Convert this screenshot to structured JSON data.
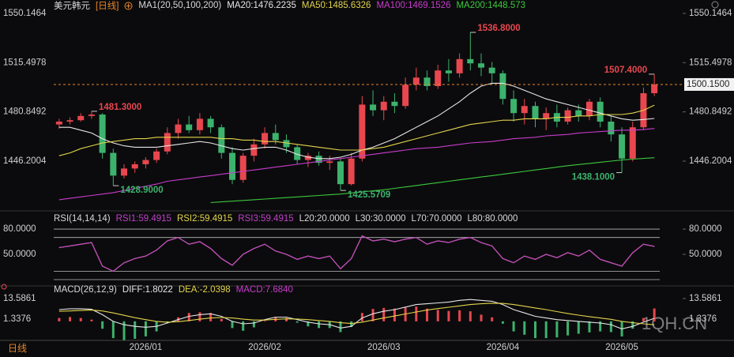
{
  "chart_data": [
    {
      "type": "candlestick",
      "title": "美元韩元",
      "period": "[日线]",
      "legend_title": "MA1(20,50,100,200)",
      "categories": [
        null,
        null,
        null,
        null,
        null,
        null,
        null,
        null,
        "2026/01",
        null,
        null,
        null,
        null,
        null,
        null,
        null,
        null,
        null,
        null,
        "2026/02",
        null,
        null,
        null,
        null,
        null,
        null,
        null,
        null,
        null,
        null,
        "2026/03",
        null,
        null,
        null,
        null,
        null,
        null,
        null,
        null,
        null,
        null,
        "2026/04",
        null,
        null,
        null,
        null,
        null,
        null,
        null,
        null,
        null,
        null,
        "2026/05",
        null,
        null,
        null
      ],
      "open": [
        1472,
        1474,
        1475,
        1478,
        1479,
        1452,
        1436,
        1441,
        1444,
        1447,
        1453,
        1466,
        1472,
        1468,
        1476,
        1470,
        1452,
        1433,
        1450,
        1458,
        1466,
        1461,
        1456,
        1447,
        1450,
        1445,
        1446,
        1430,
        1448,
        1486,
        1482,
        1488,
        1485,
        1500,
        1505,
        1499,
        1510,
        1508,
        1518,
        1515,
        1512,
        1508,
        1490,
        1480,
        1485,
        1476,
        1480,
        1474,
        1482,
        1478,
        1488,
        1474,
        1465,
        1448,
        1470,
        1494
      ],
      "high": [
        1476,
        1477,
        1480,
        1481.3,
        1480,
        1455,
        1444,
        1446,
        1449,
        1455,
        1470,
        1476,
        1478,
        1480,
        1478,
        1472,
        1456,
        1452,
        1462,
        1470,
        1472,
        1465,
        1458,
        1452,
        1453,
        1450,
        1448,
        1452,
        1492,
        1496,
        1492,
        1494,
        1505,
        1512,
        1510,
        1514,
        1518,
        1522,
        1536.8,
        1522,
        1516,
        1510,
        1496,
        1490,
        1488,
        1484,
        1486,
        1484,
        1486,
        1490,
        1491,
        1478,
        1470,
        1474,
        1498,
        1507.4
      ],
      "low": [
        1469,
        1472,
        1474,
        1476,
        1448,
        1428.9,
        1434,
        1438,
        1441,
        1445,
        1451,
        1462,
        1466,
        1465,
        1466,
        1448,
        1430,
        1431,
        1446,
        1455,
        1458,
        1452,
        1444,
        1442,
        1443,
        1440,
        1425.5709,
        1429,
        1446,
        1478,
        1475,
        1480,
        1483,
        1496,
        1496,
        1497,
        1502,
        1505,
        1510,
        1506,
        1500,
        1486,
        1474,
        1472,
        1470,
        1468,
        1470,
        1472,
        1474,
        1475,
        1470,
        1460,
        1438.1,
        1446,
        1468,
        1492
      ],
      "close": [
        1474,
        1475,
        1478,
        1479,
        1452,
        1436,
        1441,
        1444,
        1447,
        1453,
        1466,
        1472,
        1468,
        1476,
        1470,
        1452,
        1433,
        1450,
        1458,
        1466,
        1461,
        1456,
        1447,
        1450,
        1445,
        1446,
        1430,
        1448,
        1486,
        1482,
        1488,
        1485,
        1500,
        1505,
        1499,
        1510,
        1508,
        1518,
        1515,
        1512,
        1508,
        1490,
        1480,
        1485,
        1476,
        1480,
        1474,
        1482,
        1478,
        1488,
        1474,
        1465,
        1448,
        1470,
        1494,
        1500.15
      ],
      "up_color": "#e8474f",
      "down_color": "#3db26d",
      "series": [
        {
          "name": "MA20:1476.2235",
          "color": "#e6e6e6",
          "values": [
            1470,
            1470,
            1468,
            1466,
            1462,
            1459,
            1457,
            1456,
            1456,
            1456,
            1457,
            1458,
            1459,
            1460,
            1459,
            1457,
            1455,
            1454,
            1455,
            1456,
            1456,
            1454,
            1451,
            1449,
            1448,
            1448,
            1449,
            1451,
            1454,
            1456,
            1459,
            1462,
            1466,
            1470,
            1474,
            1478,
            1483,
            1488,
            1494,
            1499,
            1501,
            1501,
            1499,
            1496,
            1493,
            1490,
            1488,
            1486,
            1484,
            1482,
            1480,
            1478,
            1476,
            1475,
            1475.5,
            1476.2235
          ]
        },
        {
          "name": "MA50:1485.6326",
          "color": "#e2d44a",
          "values": [
            1450,
            1452,
            1455,
            1457,
            1459,
            1460,
            1461,
            1462,
            1462,
            1463,
            1463,
            1463,
            1463,
            1463,
            1463,
            1462,
            1462,
            1461,
            1461,
            1460,
            1460,
            1459,
            1458,
            1457,
            1456,
            1455,
            1454,
            1454,
            1454,
            1455,
            1456,
            1458,
            1460,
            1462,
            1464,
            1466,
            1468,
            1470,
            1472,
            1473,
            1474,
            1475,
            1475,
            1476,
            1476,
            1476,
            1477,
            1477,
            1478,
            1478,
            1479,
            1479,
            1479,
            1480,
            1482,
            1485.6326
          ]
        },
        {
          "name": "MA100:1469.1526",
          "color": "#c83ccc",
          "values": [
            1419,
            1420,
            1421,
            1422,
            1423,
            1424,
            1425.5,
            1427,
            1428.5,
            1430,
            1432,
            1433,
            1434,
            1435,
            1436,
            1437,
            1438,
            1439,
            1440,
            1441,
            1442,
            1443,
            1444,
            1445,
            1446,
            1447,
            1448,
            1449,
            1450,
            1451,
            1452,
            1453,
            1454,
            1455,
            1455.5,
            1456,
            1457,
            1458,
            1459,
            1459.5,
            1460,
            1461,
            1462,
            1462.5,
            1463,
            1464,
            1464.5,
            1465,
            1466,
            1466.5,
            1467,
            1467.5,
            1468,
            1468,
            1468.5,
            1469.1526
          ]
        },
        {
          "name": "MA200:1448.573",
          "color": "#3cc83c",
          "values": [
            null,
            null,
            null,
            null,
            null,
            null,
            null,
            null,
            null,
            null,
            null,
            null,
            null,
            null,
            1417,
            1417.5,
            1418,
            1418.5,
            1419,
            1419.5,
            1420,
            1420.5,
            1421,
            1421.5,
            1422,
            1422.5,
            1423,
            1423.8,
            1424.5,
            1425.3,
            1426,
            1427,
            1428,
            1429,
            1430,
            1431,
            1432,
            1433,
            1434,
            1435,
            1436,
            1437,
            1438,
            1439,
            1440,
            1441,
            1442,
            1443,
            1443.8,
            1444.6,
            1445.4,
            1446.2,
            1447,
            1447.6,
            1448.1,
            1448.573
          ]
        }
      ],
      "ylim": [
        1413.96,
        1555.15
      ],
      "yticks": [
        1550.1464,
        1515.4978,
        1480.8492,
        1446.2004
      ],
      "last_price": {
        "value": 1500.15,
        "label": "1500.1500"
      },
      "annotations": [
        {
          "value": 1481.3,
          "label": "1481.3000"
        },
        {
          "value": 1428.9,
          "label": "1428.9000"
        },
        {
          "value": 1425.5709,
          "label": "1425.5709"
        },
        {
          "value": 1536.8,
          "label": "1536.8000"
        },
        {
          "value": 1507.4,
          "label": "1507.4000"
        },
        {
          "value": 1438.1,
          "label": "1438.1000"
        }
      ]
    },
    {
      "type": "line",
      "title": "RSI(14,14,14)",
      "series": [
        {
          "name": "RSI1:59.4915",
          "color": "#c040c8",
          "values": [
            58,
            60,
            62,
            64,
            36,
            30,
            40,
            45,
            48,
            55,
            66,
            70,
            62,
            65,
            57,
            45,
            37,
            50,
            57,
            62,
            54,
            50,
            44,
            48,
            45,
            48,
            33,
            45,
            72,
            66,
            68,
            65,
            68,
            70,
            62,
            66,
            64,
            68,
            70,
            64,
            60,
            45,
            40,
            48,
            44,
            50,
            46,
            52,
            48,
            55,
            44,
            40,
            36,
            52,
            62,
            59.4915
          ]
        },
        {
          "name": "RSI2:59.4915",
          "color": "#e2d44a",
          "values": [
            58,
            60,
            62,
            64,
            36,
            30,
            40,
            45,
            48,
            55,
            66,
            70,
            62,
            65,
            57,
            45,
            37,
            50,
            57,
            62,
            54,
            50,
            44,
            48,
            45,
            48,
            33,
            45,
            72,
            66,
            68,
            65,
            68,
            70,
            62,
            66,
            64,
            68,
            70,
            64,
            60,
            45,
            40,
            48,
            44,
            50,
            46,
            52,
            48,
            55,
            44,
            40,
            36,
            52,
            62,
            59.4915
          ]
        },
        {
          "name": "RSI3:59.4915",
          "color": "#c040c8",
          "values": [
            58,
            60,
            62,
            64,
            36,
            30,
            40,
            45,
            48,
            55,
            66,
            70,
            62,
            65,
            57,
            45,
            37,
            50,
            57,
            62,
            54,
            50,
            44,
            48,
            45,
            48,
            33,
            45,
            72,
            66,
            68,
            65,
            68,
            70,
            62,
            66,
            64,
            68,
            70,
            64,
            60,
            45,
            40,
            48,
            44,
            50,
            46,
            52,
            48,
            55,
            44,
            40,
            36,
            52,
            62,
            59.4915
          ]
        }
      ],
      "levels": [
        {
          "name": "L20:20.0000",
          "value": 20
        },
        {
          "name": "L30:30.0000",
          "value": 30
        },
        {
          "name": "L70:70.0000",
          "value": 70
        },
        {
          "name": "L80:80.0000",
          "value": 80
        }
      ],
      "ylim": [
        14.4,
        86.6
      ],
      "yticks": [
        {
          "value": 80,
          "label": "80.0000"
        },
        {
          "value": 50,
          "label": "50.0000"
        }
      ]
    },
    {
      "type": "macd",
      "title": "MACD(26,12,9)",
      "series": [
        {
          "name": "DIFF:1.8022",
          "color": "#e6e6e6",
          "values": [
            7,
            7.5,
            7.5,
            7.2,
            4,
            0,
            -2,
            -3,
            -3.5,
            -3,
            -1,
            1,
            3,
            4,
            4.5,
            3,
            0,
            -1.5,
            -1,
            1,
            2.5,
            2.5,
            1,
            -0.5,
            -1.5,
            -2,
            -4,
            -3,
            2,
            4.5,
            6,
            7,
            8.5,
            10,
            10.5,
            11,
            11.5,
            12.5,
            13,
            12.5,
            12,
            10,
            7,
            5,
            3,
            2,
            1,
            0.5,
            0,
            -0.5,
            -1,
            -2,
            -4.5,
            -3,
            -0.5,
            1.8022
          ]
        },
        {
          "name": "DEA:-2.0398",
          "color": "#e2d44a",
          "values": [
            6,
            6.2,
            6.5,
            6.7,
            6.2,
            5,
            3.6,
            2.2,
            1,
            0,
            -0.5,
            -0.2,
            0.5,
            1.3,
            2,
            2.3,
            2,
            1.3,
            0.8,
            0.8,
            1.2,
            1.5,
            1.4,
            1,
            0.5,
            0,
            -0.8,
            -1.3,
            -0.5,
            0.8,
            2,
            3.2,
            4.4,
            5.6,
            6.7,
            7.6,
            8.4,
            9.2,
            10,
            10.5,
            10.8,
            10.7,
            10,
            9,
            8,
            7,
            5.8,
            4.7,
            3.7,
            2.8,
            2,
            1.2,
            0,
            -0.8,
            -1.5,
            -2.0398
          ]
        },
        {
          "name": "MACD:7.6840",
          "color": "#c83ccc",
          "type": "bar",
          "values": [
            2,
            2.6,
            2,
            1,
            -4.4,
            -10,
            -11.2,
            -10.4,
            -9,
            -6,
            -1,
            2.4,
            5,
            5.4,
            5,
            1.4,
            -4,
            -5.6,
            -3.6,
            0.4,
            2.6,
            2,
            -0.8,
            -3,
            -4,
            -4,
            -6.4,
            -3.4,
            5,
            7.4,
            8,
            7.6,
            8.2,
            8.8,
            7.6,
            6.8,
            6.2,
            6.6,
            6,
            4,
            2.4,
            -1.4,
            -6,
            -8,
            -10,
            -10,
            -9.6,
            -8.4,
            -7.4,
            -6.6,
            -6,
            -6.4,
            -9,
            -4.4,
            2,
            7.684
          ]
        }
      ],
      "ylim": [
        -9.96,
        19.24
      ],
      "yticks": [
        13.5861,
        1.3376
      ]
    }
  ],
  "footer": {
    "period": "日线",
    "watermark": "1QH.CN"
  }
}
